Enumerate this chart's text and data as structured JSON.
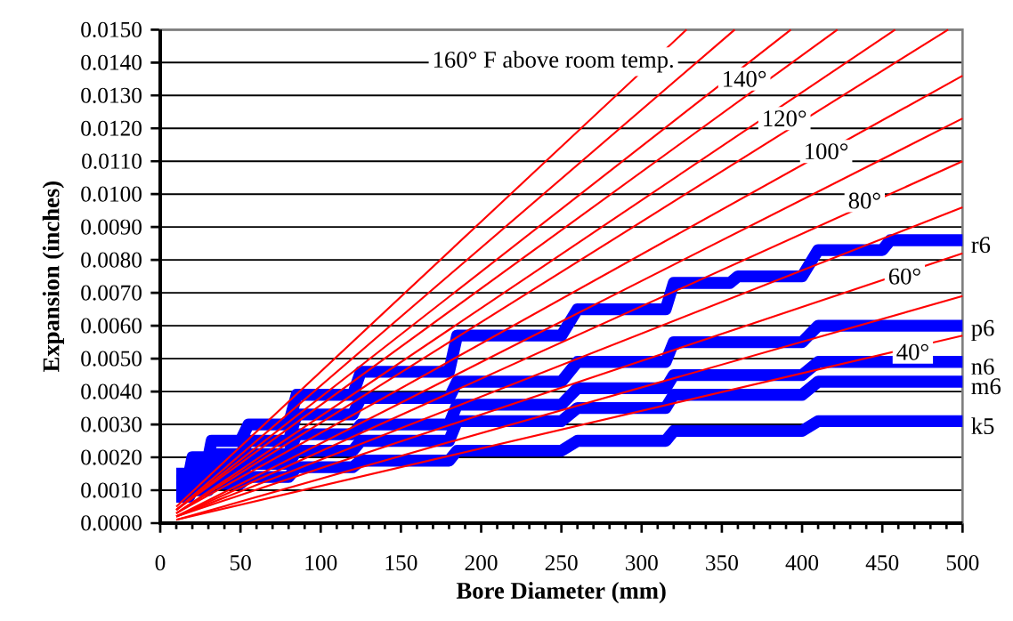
{
  "chart_data": {
    "type": "line",
    "xlabel": "Bore Diameter (mm)",
    "ylabel": "Expansion (inches)",
    "xlim": [
      0,
      500
    ],
    "xticks": [
      0,
      50,
      100,
      150,
      200,
      250,
      300,
      350,
      400,
      450,
      500
    ],
    "ylim": [
      0,
      0.015
    ],
    "yticks": [
      {
        "value": 0,
        "label": "0.0000"
      },
      {
        "value": 0.001,
        "label": "0.0010"
      },
      {
        "value": 0.002,
        "label": "0.0020"
      },
      {
        "value": 0.003,
        "label": "0.0030"
      },
      {
        "value": 0.004,
        "label": "0.0040"
      },
      {
        "value": 0.005,
        "label": "0.0050"
      },
      {
        "value": 0.006,
        "label": "0.0060"
      },
      {
        "value": 0.007,
        "label": "0.0070"
      },
      {
        "value": 0.008,
        "label": "0.0080"
      },
      {
        "value": 0.009,
        "label": "0.0090"
      },
      {
        "value": 0.01,
        "label": "0.0100"
      },
      {
        "value": 0.011,
        "label": "0.0110"
      },
      {
        "value": 0.012,
        "label": "0.0120"
      },
      {
        "value": 0.013,
        "label": "0.0130"
      },
      {
        "value": 0.014,
        "label": "0.0140"
      },
      {
        "value": 0.015,
        "label": "0.0150"
      }
    ],
    "grid": "y",
    "series": [
      {
        "name": "k5",
        "color": "#0000ff",
        "x": [
          10,
          18,
          20,
          30,
          32,
          50,
          55,
          80,
          85,
          120,
          125,
          180,
          185,
          250,
          260,
          315,
          320,
          400,
          410,
          500
        ],
        "values": [
          0.0008,
          0.0008,
          0.001,
          0.001,
          0.0012,
          0.0012,
          0.0014,
          0.0014,
          0.0017,
          0.0017,
          0.0019,
          0.0019,
          0.0022,
          0.0022,
          0.0025,
          0.0025,
          0.0028,
          0.0028,
          0.0031,
          0.0031
        ]
      },
      {
        "name": "m6",
        "color": "#0000ff",
        "x": [
          10,
          18,
          20,
          30,
          32,
          50,
          55,
          80,
          85,
          120,
          125,
          180,
          185,
          250,
          260,
          315,
          320,
          400,
          410,
          500
        ],
        "values": [
          0.0009,
          0.0009,
          0.0012,
          0.0012,
          0.0015,
          0.0015,
          0.0018,
          0.0018,
          0.0022,
          0.0022,
          0.0025,
          0.0025,
          0.0031,
          0.0031,
          0.0035,
          0.0035,
          0.0039,
          0.0039,
          0.0043,
          0.0043
        ]
      },
      {
        "name": "n6",
        "color": "#0000ff",
        "x": [
          10,
          18,
          20,
          30,
          32,
          50,
          55,
          80,
          85,
          120,
          125,
          180,
          185,
          250,
          260,
          315,
          320,
          400,
          410,
          500
        ],
        "values": [
          0.0011,
          0.0011,
          0.0014,
          0.0014,
          0.0018,
          0.0018,
          0.0021,
          0.0021,
          0.0027,
          0.0027,
          0.003,
          0.003,
          0.0036,
          0.0036,
          0.0041,
          0.0041,
          0.0045,
          0.0045,
          0.0049,
          0.0049
        ]
      },
      {
        "name": "p6",
        "color": "#0000ff",
        "x": [
          10,
          18,
          20,
          30,
          32,
          50,
          55,
          80,
          85,
          120,
          125,
          180,
          185,
          250,
          260,
          315,
          320,
          400,
          410,
          500
        ],
        "values": [
          0.0013,
          0.0013,
          0.0017,
          0.0017,
          0.0021,
          0.0021,
          0.0025,
          0.0025,
          0.0033,
          0.0033,
          0.0038,
          0.0038,
          0.0043,
          0.0043,
          0.0049,
          0.0049,
          0.0055,
          0.0055,
          0.006,
          0.006
        ]
      },
      {
        "name": "r6",
        "color": "#0000ff",
        "x": [
          10,
          18,
          20,
          30,
          32,
          50,
          55,
          80,
          85,
          120,
          125,
          180,
          185,
          250,
          260,
          315,
          320,
          355,
          360,
          400,
          410,
          450,
          455,
          500
        ],
        "values": [
          0.0015,
          0.0015,
          0.002,
          0.002,
          0.0025,
          0.0025,
          0.003,
          0.003,
          0.0039,
          0.0039,
          0.0046,
          0.0046,
          0.0057,
          0.0057,
          0.0065,
          0.0065,
          0.0073,
          0.0073,
          0.0075,
          0.0075,
          0.0083,
          0.0083,
          0.0086,
          0.0086
        ]
      },
      {
        "color": "#ff0000",
        "x": [
          10,
          500
        ],
        "values": [
          0.0001,
          0.0057
        ]
      },
      {
        "color": "#ff0000",
        "x": [
          10,
          500
        ],
        "values": [
          0.0001,
          0.0069
        ]
      },
      {
        "color": "#ff0000",
        "x": [
          10,
          500
        ],
        "values": [
          0.0002,
          0.0082
        ]
      },
      {
        "color": "#ff0000",
        "x": [
          10,
          500
        ],
        "values": [
          0.0002,
          0.0096
        ]
      },
      {
        "color": "#ff0000",
        "x": [
          10,
          500
        ],
        "values": [
          0.0002,
          0.011
        ]
      },
      {
        "color": "#ff0000",
        "x": [
          10,
          500
        ],
        "values": [
          0.0002,
          0.0123
        ]
      },
      {
        "color": "#ff0000",
        "x": [
          10,
          500
        ],
        "values": [
          0.0003,
          0.0136
        ]
      },
      {
        "color": "#ff0000",
        "x": [
          10,
          491
        ],
        "values": [
          0.0003,
          0.015
        ]
      },
      {
        "color": "#ff0000",
        "x": [
          10,
          458
        ],
        "values": [
          0.0003,
          0.015
        ]
      },
      {
        "color": "#ff0000",
        "x": [
          10,
          422
        ],
        "values": [
          0.0004,
          0.015
        ]
      },
      {
        "color": "#ff0000",
        "x": [
          10,
          393
        ],
        "values": [
          0.0004,
          0.015
        ]
      },
      {
        "color": "#ff0000",
        "x": [
          10,
          358
        ],
        "values": [
          0.0004,
          0.015
        ]
      },
      {
        "color": "#ff0000",
        "x": [
          10,
          328
        ],
        "values": [
          0.0005,
          0.015
        ]
      }
    ],
    "annotations": [
      "160° F above room temp.",
      {
        "text": "140°",
        "x": 364,
        "y": 0.0135
      },
      {
        "text": "120°",
        "x": 389,
        "y": 0.0123
      },
      {
        "text": "100°",
        "x": 415,
        "y": 0.0113
      },
      {
        "text": "80°",
        "x": 439,
        "y": 0.0098
      },
      {
        "text": "60°",
        "x": 464,
        "y": 0.0075
      },
      {
        "text": "40°",
        "x": 469,
        "y": 0.0052
      }
    ]
  }
}
